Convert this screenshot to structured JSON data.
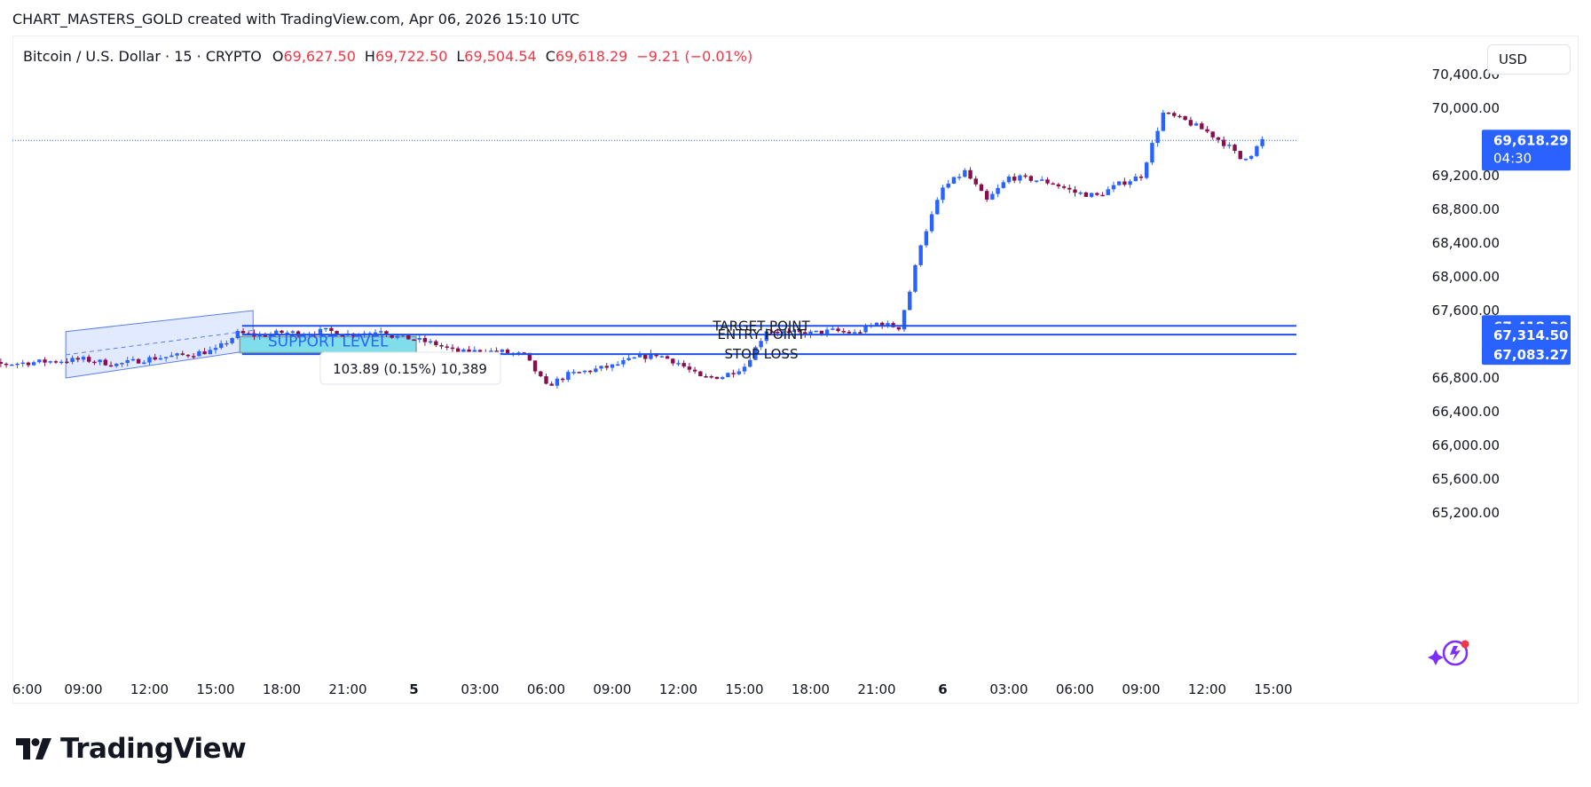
{
  "header": {
    "attribution": "CHART_MASTERS_GOLD created with TradingView.com, Apr 06, 2026 15:10 UTC"
  },
  "legend": {
    "symbol": "Bitcoin / U.S. Dollar · 15 · CRYPTO",
    "open_label": "O",
    "open": "69,627.50",
    "high_label": "H",
    "high": "69,722.50",
    "low_label": "L",
    "low": "69,504.54",
    "close_label": "C",
    "close": "69,618.29",
    "change": "−9.21 (−0.01%)"
  },
  "currency_button": {
    "label": "USD"
  },
  "price_badge": {
    "price": "69,618.29",
    "countdown": "04:30"
  },
  "measure_tooltip": {
    "text": "103.89 (0.15%) 10,389"
  },
  "support_box": {
    "label": "SUPPORT LEVEL"
  },
  "levels": [
    {
      "label": "TARGET POINT",
      "price": 67418.39,
      "price_text": "67,418.39"
    },
    {
      "label": "ENTRY POINT",
      "price": 67314.5,
      "price_text": "67,314.50"
    },
    {
      "label": "STOP LOSS",
      "price": 67083.27,
      "price_text": "67,083.27"
    }
  ],
  "footer": {
    "brand": "TradingView"
  },
  "colors": {
    "up": "#2962ff",
    "down": "#880e4f",
    "level": "#1e53e5",
    "support_fill": "#80deea",
    "channel_fill": "#dbe5ff",
    "badge": "#2962ff",
    "negative": "#f23645"
  },
  "chart_data": {
    "type": "candlestick",
    "y_axis_labels": [
      "70,400.00",
      "70,000.00",
      "69,200.00",
      "68,800.00",
      "68,400.00",
      "68,000.00",
      "67,600.00",
      "66,800.00",
      "66,400.00",
      "66,000.00",
      "65,600.00",
      "65,200.00"
    ],
    "y_axis_values": [
      70400,
      70000,
      69200,
      68800,
      68400,
      68000,
      67600,
      66800,
      66400,
      66000,
      65600,
      65200
    ],
    "ylim": [
      64800,
      70500
    ],
    "x_axis_labels": [
      "6:00",
      "09:00",
      "12:00",
      "15:00",
      "18:00",
      "21:00",
      "5",
      "03:00",
      "06:00",
      "09:00",
      "12:00",
      "15:00",
      "18:00",
      "21:00",
      "6",
      "03:00",
      "06:00",
      "09:00",
      "12:00",
      "15:00"
    ],
    "x_axis_hours": [
      6,
      9,
      12,
      15,
      18,
      21,
      24,
      27,
      30,
      33,
      36,
      39,
      42,
      45,
      48,
      51,
      54,
      57,
      60,
      63
    ],
    "close_path": [
      [
        3,
        66930
      ],
      [
        5,
        66960
      ],
      [
        7,
        66990
      ],
      [
        9,
        67020
      ],
      [
        10.5,
        66960
      ],
      [
        12,
        67030
      ],
      [
        13.5,
        67070
      ],
      [
        15,
        67130
      ],
      [
        16,
        67330
      ],
      [
        17,
        67300
      ],
      [
        18,
        67340
      ],
      [
        19,
        67330
      ],
      [
        20,
        67360
      ],
      [
        21,
        67320
      ],
      [
        22,
        67340
      ],
      [
        22.5,
        67380
      ],
      [
        23,
        67300
      ],
      [
        24,
        67260
      ],
      [
        25,
        67200
      ],
      [
        26,
        67100
      ],
      [
        27,
        67120
      ],
      [
        28,
        67110
      ],
      [
        29,
        67070
      ],
      [
        30,
        66700
      ],
      [
        31,
        66840
      ],
      [
        33,
        66940
      ],
      [
        34,
        67030
      ],
      [
        35,
        67080
      ],
      [
        36,
        66980
      ],
      [
        37,
        66800
      ],
      [
        38,
        66820
      ],
      [
        39,
        66940
      ],
      [
        40,
        67370
      ],
      [
        41,
        67330
      ],
      [
        42,
        67330
      ],
      [
        43,
        67360
      ],
      [
        44,
        67330
      ],
      [
        45,
        67450
      ],
      [
        46,
        67400
      ],
      [
        46.5,
        67830
      ],
      [
        47,
        68400
      ],
      [
        48,
        69050
      ],
      [
        49,
        69250
      ],
      [
        50,
        68900
      ],
      [
        51,
        69180
      ],
      [
        52,
        69160
      ],
      [
        53,
        69110
      ],
      [
        54,
        69000
      ],
      [
        55,
        68960
      ],
      [
        56,
        69100
      ],
      [
        57,
        69200
      ],
      [
        58,
        69940
      ],
      [
        59,
        69850
      ],
      [
        60,
        69720
      ],
      [
        61,
        69540
      ],
      [
        61.5,
        69400
      ],
      [
        62,
        69460
      ],
      [
        62.5,
        69618
      ]
    ],
    "last_price": 69618.29
  }
}
